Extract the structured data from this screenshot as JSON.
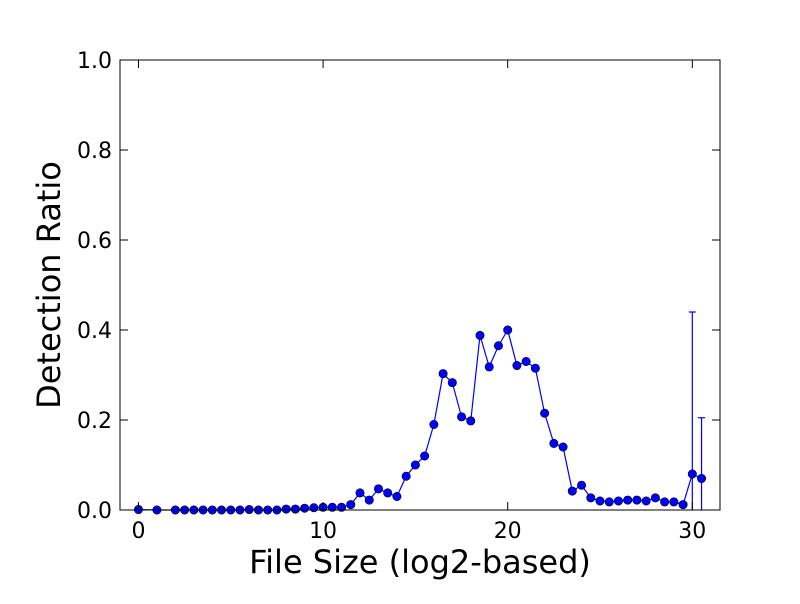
{
  "chart_data": {
    "type": "line",
    "title": "",
    "xlabel": "File Size (log2-based)",
    "ylabel": "Detection Ratio",
    "xlim": [
      -1,
      31.5
    ],
    "ylim": [
      0,
      1.0
    ],
    "xticks": [
      0,
      10,
      20,
      30
    ],
    "xtick_labels": [
      "0",
      "10",
      "20",
      "30"
    ],
    "yticks": [
      0.0,
      0.2,
      0.4,
      0.6,
      0.8,
      1.0
    ],
    "ytick_labels": [
      "0.0",
      "0.2",
      "0.4",
      "0.6",
      "0.8",
      "1.0"
    ],
    "grid": false,
    "colors": {
      "series": "#0000ff",
      "marker": "#0000ff",
      "axes": "#000000"
    },
    "series": [
      {
        "marker": "circle",
        "x": [
          0,
          1,
          2,
          2.5,
          3,
          3.5,
          4,
          4.5,
          5,
          5.5,
          6,
          6.5,
          7,
          7.5,
          8,
          8.5,
          9,
          9.5,
          10,
          10.5,
          11,
          11.5,
          12,
          12.5,
          13,
          13.5,
          14,
          14.5,
          15,
          15.5,
          16,
          16.5,
          17,
          17.5,
          18,
          18.5,
          19,
          19.5,
          20,
          20.5,
          21,
          21.5,
          22,
          22.5,
          23,
          23.5,
          24,
          24.5,
          25,
          25.5,
          26,
          26.5,
          27,
          27.5,
          28,
          28.5,
          29,
          29.5,
          30,
          30.5
        ],
        "y": [
          0.001,
          0.0,
          0.0,
          0.0,
          0.0,
          0.0,
          0.0,
          0.0,
          0.0,
          0.0,
          0.001,
          0.0,
          0.0,
          0.0,
          0.002,
          0.002,
          0.004,
          0.005,
          0.006,
          0.006,
          0.006,
          0.012,
          0.038,
          0.022,
          0.047,
          0.038,
          0.03,
          0.075,
          0.1,
          0.12,
          0.19,
          0.303,
          0.283,
          0.207,
          0.198,
          0.388,
          0.318,
          0.365,
          0.4,
          0.321,
          0.33,
          0.315,
          0.215,
          0.148,
          0.14,
          0.042,
          0.055,
          0.027,
          0.02,
          0.018,
          0.02,
          0.022,
          0.022,
          0.02,
          0.027,
          0.018,
          0.018,
          0.012,
          0.08,
          0.07
        ],
        "error_bars": [
          {
            "x": 30,
            "low": 0.0,
            "high": 0.44
          },
          {
            "x": 30.5,
            "low": 0.0,
            "high": 0.205
          }
        ]
      }
    ]
  }
}
